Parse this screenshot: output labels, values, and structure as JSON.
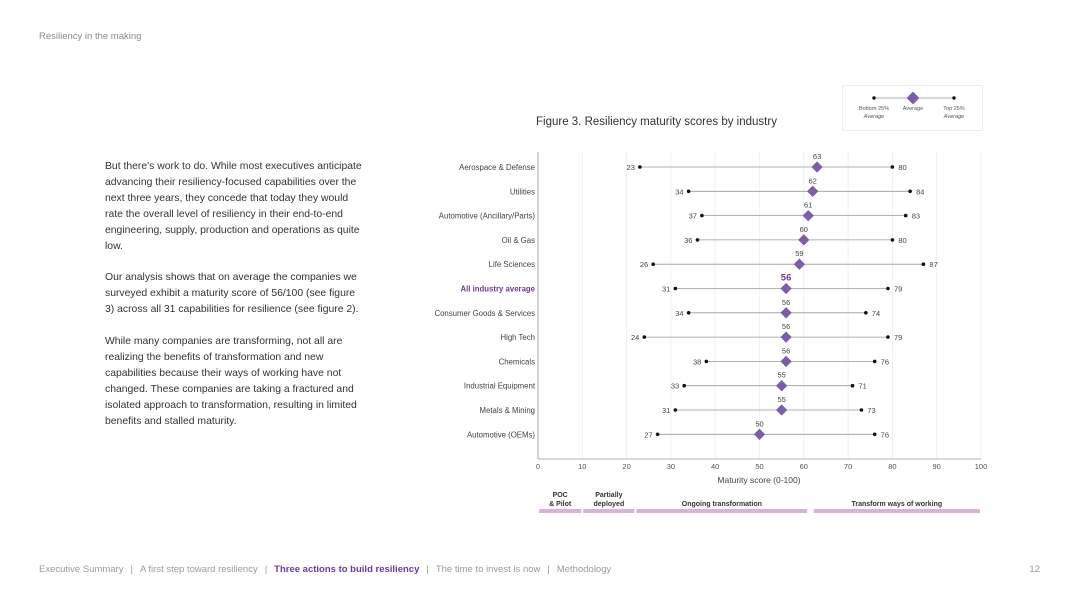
{
  "header": {
    "title": "Resiliency in the making"
  },
  "body": {
    "paragraphs": [
      "But there's work to do. While most executives anticipate advancing their resiliency-focused capabilities over the next three years, they concede that today they would rate the overall level of resiliency in their end-to-end engineering, supply, production and operations as quite low.",
      "Our analysis shows that on average the companies we surveyed exhibit a maturity score of 56/100 (see figure 3) across all 31 capabilities for resilience (see figure 2).",
      "While many companies are transforming, not all are realizing the benefits of transformation and new capabilities because their ways of working have not changed. These companies are taking a fractured and isolated approach to transformation, resulting in limited benefits and stalled maturity."
    ]
  },
  "figure": {
    "title": "Figure 3. Resiliency maturity scores by industry"
  },
  "legend": {
    "bottom_label_1": "Bottom 25%",
    "bottom_label_2": "Average",
    "average_label": "Average",
    "top_label_1": "Top 25%",
    "top_label_2": "Average"
  },
  "colors": {
    "accent": "#7b5ea7",
    "accent_text": "#6e3a9a",
    "whisker": "#999999",
    "stage_bar": "#d8b3d8"
  },
  "chart_data": {
    "type": "dot-range",
    "categories": [
      "Aerospace & Defense",
      "Utilities",
      "Automotive (Ancillary/Parts)",
      "Oil & Gas",
      "Life Sciences",
      "All industry average",
      "Consumer Goods & Services",
      "High Tech",
      "Chemicals",
      "Industrial Equipment",
      "Metals & Mining",
      "Automotive (OEMs)"
    ],
    "highlight": "All industry average",
    "series": [
      {
        "name": "Bottom 25% Average",
        "values": [
          23,
          34,
          37,
          36,
          26,
          31,
          34,
          24,
          38,
          33,
          31,
          27
        ]
      },
      {
        "name": "Average",
        "values": [
          63,
          62,
          61,
          60,
          59,
          56,
          56,
          56,
          56,
          55,
          55,
          50
        ]
      },
      {
        "name": "Top 25% Average",
        "values": [
          80,
          84,
          83,
          80,
          87,
          79,
          74,
          79,
          76,
          71,
          73,
          76
        ]
      }
    ],
    "xlabel": "Maturity score (0-100)",
    "xlim": [
      0,
      100
    ],
    "xticks": [
      "0",
      "10",
      "20",
      "30",
      "40",
      "50",
      "60",
      "70",
      "80",
      "90",
      "100"
    ],
    "grid": true,
    "legend_position": "top-right",
    "stages": [
      {
        "label": "POC & Pilot",
        "start": 0,
        "end": 10
      },
      {
        "label": "Partially deployed",
        "start": 10,
        "end": 22
      },
      {
        "label": "Ongoing transformation",
        "start": 22,
        "end": 61
      },
      {
        "label": "Transform ways of working",
        "start": 62,
        "end": 100
      }
    ]
  },
  "footer": {
    "items": [
      {
        "label": "Executive Summary",
        "active": false
      },
      {
        "label": "A first step toward resiliency",
        "active": false
      },
      {
        "label": "Three actions to build resiliency",
        "active": true
      },
      {
        "label": "The time to invest is now",
        "active": false
      },
      {
        "label": "Methodology",
        "active": false
      }
    ],
    "separator": "|",
    "page_number": "12"
  }
}
